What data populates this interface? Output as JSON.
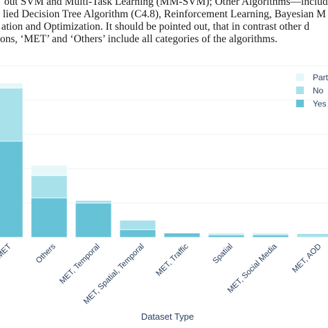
{
  "caption": {
    "lines": [
      "out SVM and Multi-Task Learning (MM-SVM); Other Algorithms—includ",
      "lied Decision Tree Algorithm (C4.8), Reinforcement Learning, Bayesian M",
      "ation and Optimization. It should be pointed out, that in contrast other d",
      "ons, ‘MET’ and ‘Others’ include all categories of the algorithms."
    ]
  },
  "chart_data": {
    "type": "bar",
    "stacked": true,
    "xlabel": "Dataset Type",
    "ylabel": "",
    "ylim": [
      0,
      1.0
    ],
    "grid": true,
    "legend_placement": "top-right",
    "categories": [
      "MET",
      "Others",
      "MET, Temporal",
      "MET, Spatial, Temporal",
      "MET, Traffic",
      "Spatial",
      "MET, Social Media",
      "MET, AOD"
    ],
    "series": [
      {
        "name": "Yes",
        "color": "#66c2d7",
        "values": [
          0.56,
          0.23,
          0.2,
          0.045,
          0.025,
          0.014,
          0.014,
          0.0
        ]
      },
      {
        "name": "No",
        "color": "#a8e1ea",
        "values": [
          0.31,
          0.13,
          0.015,
          0.055,
          0.0,
          0.009,
          0.009,
          0.022
        ]
      },
      {
        "name": "Partial",
        "color": "#e6f7fa",
        "values": [
          0.03,
          0.06,
          0.0,
          0.0,
          0.0,
          0.0,
          0.004,
          0.0
        ]
      }
    ],
    "legend_entries": [
      "Partial",
      "No",
      "Yes"
    ]
  }
}
